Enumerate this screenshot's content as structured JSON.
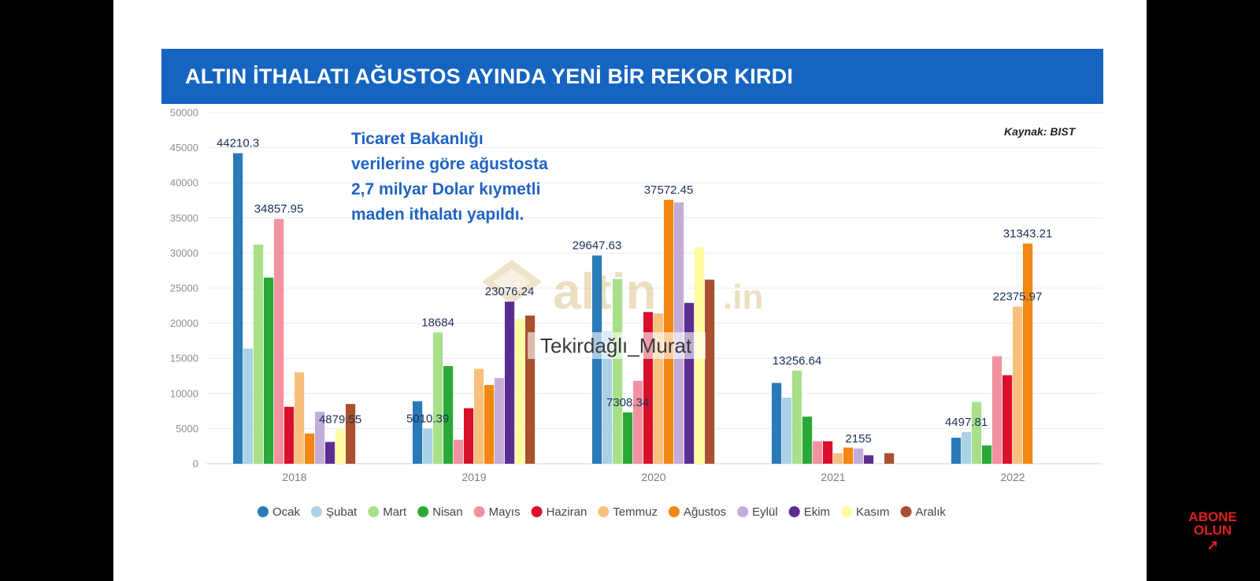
{
  "title": "ALTIN İTHALATI AĞUSTOS AYINDA YENİ BİR REKOR KIRDI",
  "annotation": [
    "Ticaret Bakanlığı",
    "verilerine göre ağustosta",
    "2,7 milyar Dolar kıymetli",
    "maden ithalatı yapıldı."
  ],
  "source": "Kaynak: BIST",
  "watermark": {
    "brand": "altin",
    "tld": ".in",
    "user": "Tekirdağlı_Murat"
  },
  "subscribe": [
    "ABONE",
    "OLUN"
  ],
  "chart_data": {
    "type": "bar",
    "categories": [
      "2018",
      "2019",
      "2020",
      "2021",
      "2022"
    ],
    "ylim": [
      0,
      50000
    ],
    "yticks": [
      0,
      5000,
      10000,
      15000,
      20000,
      25000,
      30000,
      35000,
      40000,
      45000,
      50000
    ],
    "grid": true,
    "legend_position": "bottom",
    "series": [
      {
        "name": "Ocak",
        "color": "#2a7ab8",
        "values": [
          44210.3,
          8900,
          29647.63,
          11500,
          3700
        ]
      },
      {
        "name": "Şubat",
        "color": "#a9d2e6",
        "values": [
          16400,
          5010.39,
          18800,
          9400,
          4497.81
        ]
      },
      {
        "name": "Mart",
        "color": "#a8e08a",
        "values": [
          31200,
          18684,
          26300,
          13256.64,
          8800
        ]
      },
      {
        "name": "Nisan",
        "color": "#2aa838",
        "values": [
          26500,
          13900,
          7308.34,
          6700,
          2600
        ]
      },
      {
        "name": "Mayıs",
        "color": "#f291a0",
        "values": [
          34857.95,
          3400,
          11800,
          3200,
          15300
        ]
      },
      {
        "name": "Haziran",
        "color": "#d8102a",
        "values": [
          8100,
          7900,
          21600,
          3200,
          12600
        ]
      },
      {
        "name": "Temmuz",
        "color": "#f8c07c",
        "values": [
          13000,
          13500,
          21400,
          1500,
          22375.97
        ]
      },
      {
        "name": "Ağustos",
        "color": "#f28712",
        "values": [
          4300,
          11200,
          37572.45,
          2300,
          31343.21
        ]
      },
      {
        "name": "Eylül",
        "color": "#c3acd7",
        "values": [
          7400,
          12200,
          37200,
          2155,
          0
        ]
      },
      {
        "name": "Ekim",
        "color": "#5b2d91",
        "values": [
          3100,
          23076.24,
          22900,
          1200,
          0
        ]
      },
      {
        "name": "Kasım",
        "color": "#fffca0",
        "values": [
          4879.55,
          20600,
          30800,
          0,
          0
        ]
      },
      {
        "name": "Aralık",
        "color": "#a9502e",
        "values": [
          8500,
          21100,
          26200,
          1500,
          0
        ]
      }
    ],
    "data_labels": [
      {
        "category": "2018",
        "series": "Ocak",
        "text": "44210.3"
      },
      {
        "category": "2018",
        "series": "Mayıs",
        "text": "34857.95"
      },
      {
        "category": "2018",
        "series": "Kasım",
        "text": "4879.55"
      },
      {
        "category": "2019",
        "series": "Şubat",
        "text": "5010.39"
      },
      {
        "category": "2019",
        "series": "Mart",
        "text": "18684"
      },
      {
        "category": "2019",
        "series": "Ekim",
        "text": "23076.24"
      },
      {
        "category": "2020",
        "series": "Ocak",
        "text": "29647.63"
      },
      {
        "category": "2020",
        "series": "Nisan",
        "text": "7308.34"
      },
      {
        "category": "2020",
        "series": "Ağustos",
        "text": "37572.45"
      },
      {
        "category": "2021",
        "series": "Mart",
        "text": "13256.64"
      },
      {
        "category": "2021",
        "series": "Eylül",
        "text": "2155"
      },
      {
        "category": "2022",
        "series": "Şubat",
        "text": "4497.81"
      },
      {
        "category": "2022",
        "series": "Temmuz",
        "text": "22375.97"
      },
      {
        "category": "2022",
        "series": "Ağustos",
        "text": "31343.21"
      }
    ]
  }
}
